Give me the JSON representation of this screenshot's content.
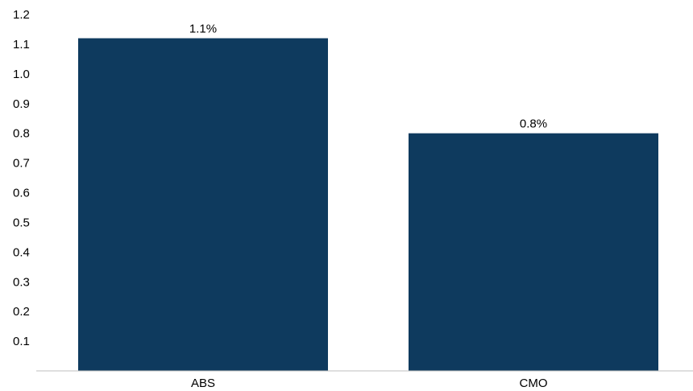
{
  "chart_data": {
    "type": "bar",
    "categories": [
      "ABS",
      "CMO"
    ],
    "values": [
      1.12,
      0.8
    ],
    "data_labels": [
      "1.1%",
      "0.8%"
    ],
    "yticks": [
      "0.1",
      "0.2",
      "0.3",
      "0.4",
      "0.5",
      "0.6",
      "0.7",
      "0.8",
      "0.9",
      "1.0",
      "1.1",
      "1.2"
    ],
    "ylim": [
      0,
      1.2
    ],
    "grid": false,
    "bar_color": "#0e3a5e",
    "axis_color": "#bfbfbf"
  }
}
